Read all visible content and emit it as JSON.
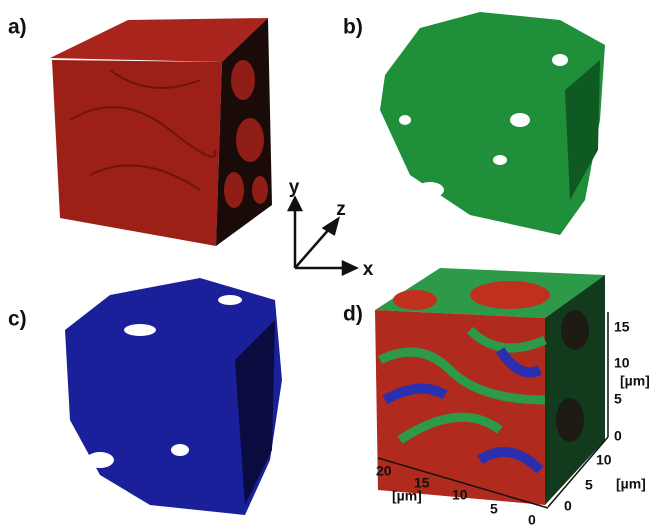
{
  "panels": [
    {
      "label": "a)"
    },
    {
      "label": "b)"
    },
    {
      "label": "c)"
    },
    {
      "label": "d)"
    }
  ],
  "axes_glyph": {
    "x": "x",
    "y": "y",
    "z": "z"
  },
  "panel_d": {
    "vertical_axis": {
      "ticks": [
        0,
        5,
        10,
        15
      ],
      "unit": "[µm]"
    },
    "depth_axis": {
      "ticks": [
        0,
        5,
        10
      ],
      "unit": "[µm]"
    },
    "front_axis": {
      "ticks": [
        20,
        15,
        10,
        5,
        0
      ],
      "unit": "[µm]"
    }
  }
}
